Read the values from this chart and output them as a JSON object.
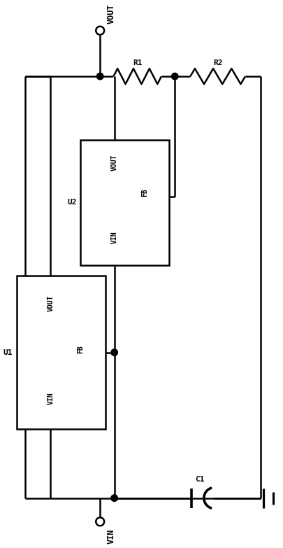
{
  "bg_color": "#ffffff",
  "line_color": "#000000",
  "lw": 1.8,
  "fig_width": 4.05,
  "fig_height": 7.83,
  "dpi": 100,
  "vout_label": "VOUT",
  "vin_label": "VIN",
  "r1_label": "R1",
  "r2_label": "R2",
  "c1_label": "C1",
  "u1_label": "U1",
  "u2_label": "U2",
  "xlim": [
    0,
    100
  ],
  "ylim": [
    0,
    195
  ]
}
